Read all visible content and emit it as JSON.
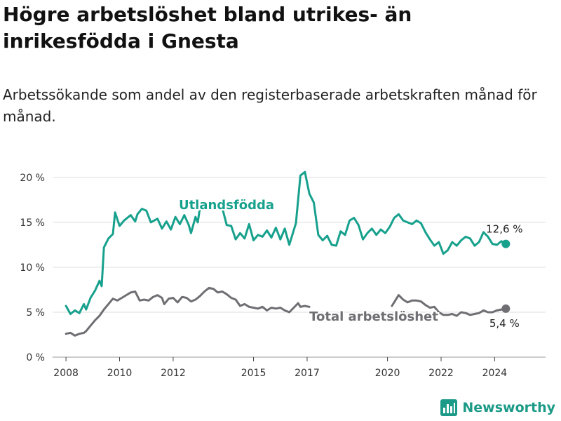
{
  "header": {
    "title": "Högre arbetslöshet bland utrikes- än inrikesfödda i Gnesta",
    "subtitle": "Arbetssökande som andel av den registerbaserade arbetskraften månad för månad."
  },
  "brand": {
    "name": "Newsworthy",
    "icon": "bar-chart-logo-icon"
  },
  "colors": {
    "foreign_born": "#17a18d",
    "total": "#6e6e73",
    "grid": "#dddddd",
    "brand": "#1b9a87"
  },
  "chart_data": {
    "type": "line",
    "title": "Högre arbetslöshet bland utrikes- än inrikesfödda i Gnesta",
    "subtitle": "Arbetssökande som andel av den registerbaserade arbetskraften månad för månad.",
    "xlabel": "",
    "ylabel": "",
    "x_ticks": [
      "2008",
      "2010",
      "2012",
      "2015",
      "2017",
      "2020",
      "2022",
      "2024"
    ],
    "y_ticks": [
      "0 %",
      "5 %",
      "10 %",
      "15 %",
      "20 %"
    ],
    "ylim": [
      0,
      21
    ],
    "grid": "horizontal",
    "series": [
      {
        "name": "Utlandsfödda",
        "color": "#17a18d",
        "end_label": "12,6 %",
        "points": [
          [
            "2008-01",
            5.7
          ],
          [
            "2008-03",
            4.8
          ],
          [
            "2008-05",
            5.2
          ],
          [
            "2008-07",
            4.9
          ],
          [
            "2008-09",
            5.9
          ],
          [
            "2008-10",
            5.3
          ],
          [
            "2008-12",
            6.6
          ],
          [
            "2009-02",
            7.4
          ],
          [
            "2009-04",
            8.5
          ],
          [
            "2009-05",
            7.9
          ],
          [
            "2009-06",
            12.2
          ],
          [
            "2009-08",
            13.2
          ],
          [
            "2009-10",
            13.7
          ],
          [
            "2009-11",
            16.1
          ],
          [
            "2010-01",
            14.6
          ],
          [
            "2010-03",
            15.2
          ],
          [
            "2010-06",
            15.8
          ],
          [
            "2010-08",
            15.1
          ],
          [
            "2010-09",
            15.9
          ],
          [
            "2010-11",
            16.5
          ],
          [
            "2011-01",
            16.3
          ],
          [
            "2011-03",
            15.0
          ],
          [
            "2011-06",
            15.4
          ],
          [
            "2011-08",
            14.3
          ],
          [
            "2011-10",
            15.1
          ],
          [
            "2011-12",
            14.2
          ],
          [
            "2012-02",
            15.6
          ],
          [
            "2012-04",
            14.8
          ],
          [
            "2012-06",
            15.8
          ],
          [
            "2012-08",
            14.7
          ],
          [
            "2012-09",
            13.8
          ],
          [
            "2012-11",
            15.6
          ],
          [
            "2012-12",
            15.0
          ],
          [
            "2013-01",
            16.6
          ],
          null,
          [
            "2013-09",
            17.0
          ],
          [
            "2013-11",
            16.6
          ],
          [
            "2014-01",
            14.7
          ],
          [
            "2014-03",
            14.6
          ],
          [
            "2014-05",
            13.1
          ],
          [
            "2014-07",
            13.8
          ],
          [
            "2014-09",
            13.2
          ],
          [
            "2014-11",
            14.8
          ],
          [
            "2015-01",
            13.0
          ],
          [
            "2015-03",
            13.6
          ],
          [
            "2015-05",
            13.4
          ],
          [
            "2015-07",
            14.1
          ],
          [
            "2015-09",
            13.3
          ],
          [
            "2015-11",
            14.4
          ],
          [
            "2016-01",
            13.1
          ],
          [
            "2016-03",
            14.3
          ],
          [
            "2016-05",
            12.5
          ],
          [
            "2016-08",
            14.9
          ],
          [
            "2016-10",
            20.2
          ],
          [
            "2016-12",
            20.6
          ],
          [
            "2017-02",
            18.2
          ],
          [
            "2017-04",
            17.2
          ],
          [
            "2017-06",
            13.6
          ],
          [
            "2017-08",
            13.0
          ],
          [
            "2017-10",
            13.5
          ],
          [
            "2017-12",
            12.5
          ],
          [
            "2018-02",
            12.4
          ],
          [
            "2018-04",
            14.0
          ],
          [
            "2018-06",
            13.6
          ],
          [
            "2018-08",
            15.2
          ],
          [
            "2018-10",
            15.5
          ],
          [
            "2018-12",
            14.7
          ],
          [
            "2019-02",
            13.1
          ],
          [
            "2019-04",
            13.8
          ],
          [
            "2019-06",
            14.3
          ],
          [
            "2019-08",
            13.6
          ],
          [
            "2019-10",
            14.2
          ],
          [
            "2019-12",
            13.8
          ],
          [
            "2020-02",
            14.5
          ],
          [
            "2020-04",
            15.5
          ],
          [
            "2020-06",
            15.9
          ],
          [
            "2020-08",
            15.2
          ],
          [
            "2020-10",
            15.0
          ],
          [
            "2020-12",
            14.8
          ],
          [
            "2021-02",
            15.2
          ],
          [
            "2021-04",
            14.9
          ],
          [
            "2021-06",
            13.9
          ],
          [
            "2021-08",
            13.1
          ],
          [
            "2021-10",
            12.4
          ],
          [
            "2021-12",
            12.8
          ],
          [
            "2022-02",
            11.5
          ],
          [
            "2022-04",
            11.9
          ],
          [
            "2022-06",
            12.8
          ],
          [
            "2022-08",
            12.4
          ],
          [
            "2022-10",
            13.0
          ],
          [
            "2022-12",
            13.4
          ],
          [
            "2023-02",
            13.2
          ],
          [
            "2023-04",
            12.4
          ],
          [
            "2023-06",
            12.8
          ],
          [
            "2023-08",
            13.9
          ],
          [
            "2023-10",
            13.4
          ],
          [
            "2023-12",
            12.6
          ],
          [
            "2024-02",
            12.5
          ],
          [
            "2024-04",
            12.9
          ],
          [
            "2024-06",
            12.6
          ]
        ]
      },
      {
        "name": "Total arbetslöshet",
        "color": "#6e6e73",
        "end_label": "5,4 %",
        "points": [
          [
            "2008-01",
            2.6
          ],
          [
            "2008-03",
            2.7
          ],
          [
            "2008-05",
            2.4
          ],
          [
            "2008-07",
            2.6
          ],
          [
            "2008-09",
            2.7
          ],
          [
            "2008-10",
            2.9
          ],
          [
            "2008-12",
            3.5
          ],
          [
            "2009-02",
            4.1
          ],
          [
            "2009-04",
            4.6
          ],
          [
            "2009-06",
            5.3
          ],
          [
            "2009-08",
            5.9
          ],
          [
            "2009-10",
            6.5
          ],
          [
            "2009-12",
            6.3
          ],
          [
            "2010-02",
            6.6
          ],
          [
            "2010-04",
            6.9
          ],
          [
            "2010-06",
            7.2
          ],
          [
            "2010-08",
            7.3
          ],
          [
            "2010-10",
            6.3
          ],
          [
            "2010-12",
            6.4
          ],
          [
            "2011-02",
            6.3
          ],
          [
            "2011-04",
            6.7
          ],
          [
            "2011-06",
            6.9
          ],
          [
            "2011-08",
            6.6
          ],
          [
            "2011-09",
            5.9
          ],
          [
            "2011-11",
            6.5
          ],
          [
            "2012-01",
            6.6
          ],
          [
            "2012-03",
            6.1
          ],
          [
            "2012-05",
            6.7
          ],
          [
            "2012-07",
            6.6
          ],
          [
            "2012-09",
            6.2
          ],
          [
            "2012-11",
            6.4
          ],
          [
            "2013-01",
            6.8
          ],
          [
            "2013-03",
            7.3
          ],
          [
            "2013-05",
            7.7
          ],
          [
            "2013-07",
            7.6
          ],
          [
            "2013-09",
            7.2
          ],
          [
            "2013-11",
            7.3
          ],
          [
            "2014-01",
            7.0
          ],
          [
            "2014-03",
            6.6
          ],
          [
            "2014-05",
            6.4
          ],
          [
            "2014-07",
            5.7
          ],
          [
            "2014-09",
            5.9
          ],
          [
            "2014-11",
            5.6
          ],
          [
            "2015-01",
            5.5
          ],
          [
            "2015-03",
            5.4
          ],
          [
            "2015-05",
            5.6
          ],
          [
            "2015-07",
            5.2
          ],
          [
            "2015-09",
            5.5
          ],
          [
            "2015-11",
            5.4
          ],
          [
            "2016-01",
            5.5
          ],
          [
            "2016-03",
            5.2
          ],
          [
            "2016-05",
            5.0
          ],
          [
            "2016-07",
            5.5
          ],
          [
            "2016-09",
            6.0
          ],
          [
            "2016-10",
            5.6
          ],
          [
            "2016-12",
            5.7
          ],
          [
            "2017-02",
            5.6
          ],
          null,
          [
            "2020-03",
            5.7
          ],
          [
            "2020-05",
            6.5
          ],
          [
            "2020-06",
            6.9
          ],
          [
            "2020-08",
            6.4
          ],
          [
            "2020-10",
            6.1
          ],
          [
            "2020-12",
            6.3
          ],
          [
            "2021-02",
            6.3
          ],
          [
            "2021-04",
            6.2
          ],
          [
            "2021-06",
            5.8
          ],
          [
            "2021-08",
            5.5
          ],
          [
            "2021-10",
            5.6
          ],
          [
            "2021-12",
            5.0
          ],
          [
            "2022-02",
            4.7
          ],
          [
            "2022-04",
            4.7
          ],
          [
            "2022-06",
            4.8
          ],
          [
            "2022-08",
            4.6
          ],
          [
            "2022-10",
            5.0
          ],
          [
            "2022-12",
            4.9
          ],
          [
            "2023-02",
            4.7
          ],
          [
            "2023-04",
            4.8
          ],
          [
            "2023-06",
            4.9
          ],
          [
            "2023-08",
            5.2
          ],
          [
            "2023-10",
            5.0
          ],
          [
            "2023-12",
            5.0
          ],
          [
            "2024-02",
            5.2
          ],
          [
            "2024-04",
            5.3
          ],
          [
            "2024-06",
            5.4
          ]
        ]
      }
    ]
  }
}
